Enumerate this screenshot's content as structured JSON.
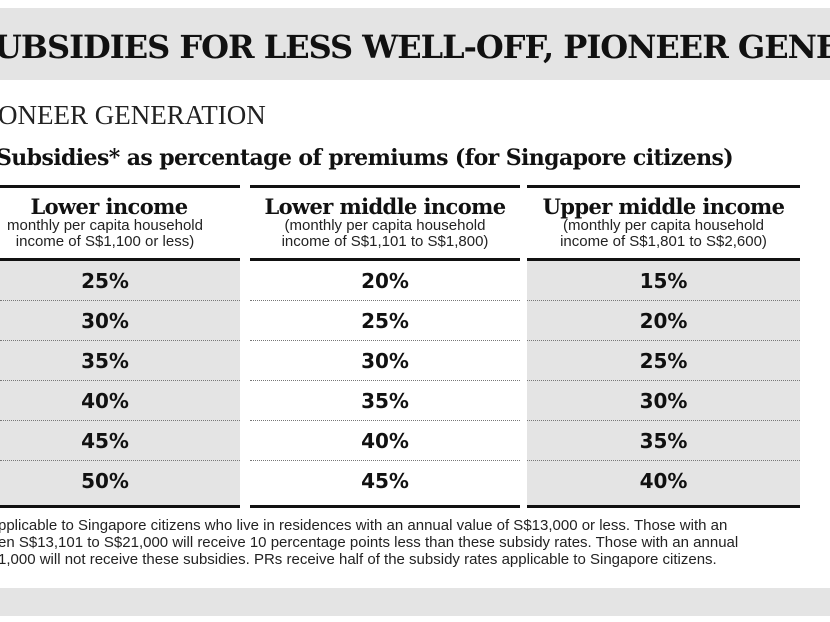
{
  "banner": {
    "title": "UBSIDIES FOR LESS WELL-OFF, PIONEER GENERAT"
  },
  "section_label": "ONEER GENERATION",
  "subtitle": "Subsidies* as percentage of premiums (for Singapore citizens)",
  "table": {
    "columns": [
      {
        "title": "Lower income",
        "sub_line_1": "monthly per capita household",
        "sub_line_2": "income of S$1,100 or less)",
        "values": [
          "25%",
          "30%",
          "35%",
          "40%",
          "45%",
          "50%"
        ]
      },
      {
        "title": "Lower middle income",
        "sub_line_1": "(monthly per capita household",
        "sub_line_2": "income of S$1,101 to S$1,800)",
        "values": [
          "20%",
          "25%",
          "30%",
          "35%",
          "40%",
          "45%"
        ]
      },
      {
        "title": "Upper middle income",
        "sub_line_1": "(monthly per capita household",
        "sub_line_2": "income of S$1,801 to S$2,600)",
        "values": [
          "15%",
          "20%",
          "25%",
          "30%",
          "35%",
          "40%"
        ]
      }
    ]
  },
  "footnote": {
    "line_1": "pplicable to Singapore citizens who live in residences with an annual value of S$13,000 or less. Those with an",
    "line_2": "en S$13,101 to S$21,000 will receive 10 percentage points less than these subsidy rates. Those with an annual",
    "line_3": "1,000 will not receive these subsidies. PRs receive half of the subsidy rates applicable to Singapore citizens."
  }
}
